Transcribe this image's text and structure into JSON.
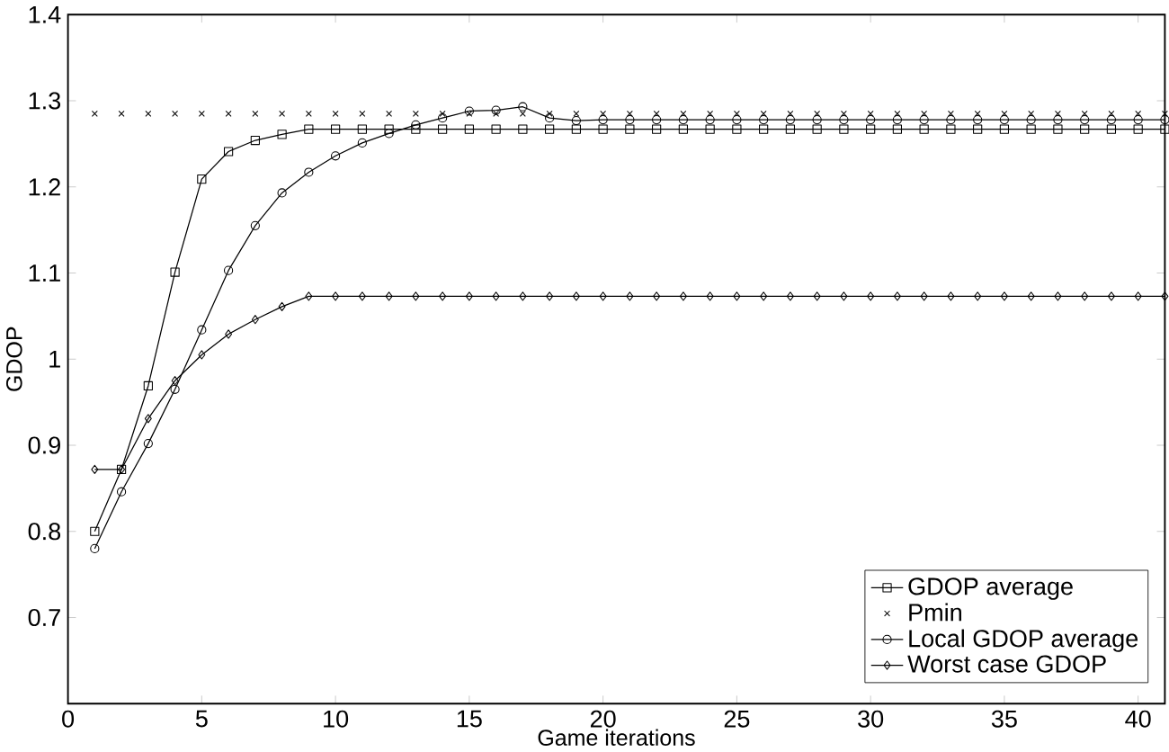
{
  "chart_data": {
    "type": "line",
    "xlabel": "Game iterations",
    "ylabel": "GDOP",
    "xlim": [
      0,
      41
    ],
    "xticks": [
      0,
      5,
      10,
      15,
      20,
      25,
      30,
      35,
      40
    ],
    "ylim": [
      0.6,
      1.4
    ],
    "yticks": [
      0.7,
      0.8,
      0.9,
      1,
      1.1,
      1.2,
      1.3,
      1.4
    ],
    "grid": false,
    "legend": "bottom right",
    "line_style": "solid",
    "x": [
      1,
      2,
      3,
      4,
      5,
      6,
      7,
      8,
      9,
      10,
      11,
      12,
      13,
      14,
      15,
      16,
      17,
      18,
      19,
      20,
      21,
      22,
      23,
      24,
      25,
      26,
      27,
      28,
      29,
      30,
      31,
      32,
      33,
      34,
      35,
      36,
      37,
      38,
      39,
      40,
      41
    ],
    "series": [
      {
        "name": "GDOP average",
        "color": "#000000",
        "marker": "square",
        "values": [
          0.8,
          0.872,
          0.969,
          1.101,
          1.209,
          1.241,
          1.254,
          1.261,
          1.267,
          1.267,
          1.267,
          1.267,
          1.267,
          1.267,
          1.267,
          1.267,
          1.267,
          1.267,
          1.267,
          1.267,
          1.267,
          1.267,
          1.267,
          1.267,
          1.267,
          1.267,
          1.267,
          1.267,
          1.267,
          1.267,
          1.267,
          1.267,
          1.267,
          1.267,
          1.267,
          1.267,
          1.267,
          1.267,
          1.267,
          1.267,
          1.267
        ]
      },
      {
        "name": "Pmin",
        "type": "scatter",
        "color": "#000000",
        "marker": "cross",
        "values": [
          1.285,
          1.285,
          1.285,
          1.285,
          1.285,
          1.285,
          1.285,
          1.285,
          1.285,
          1.285,
          1.285,
          1.285,
          1.285,
          1.285,
          1.285,
          1.285,
          1.285,
          1.285,
          1.285,
          1.285,
          1.285,
          1.285,
          1.285,
          1.285,
          1.285,
          1.285,
          1.285,
          1.285,
          1.285,
          1.285,
          1.285,
          1.285,
          1.285,
          1.285,
          1.285,
          1.285,
          1.285,
          1.285,
          1.285,
          1.285,
          1.285
        ]
      },
      {
        "name": "Local GDOP average",
        "color": "#000000",
        "marker": "circle",
        "values": [
          0.78,
          0.846,
          0.902,
          0.965,
          1.034,
          1.103,
          1.155,
          1.193,
          1.217,
          1.236,
          1.251,
          1.262,
          1.272,
          1.28,
          1.288,
          1.289,
          1.293,
          1.28,
          1.277,
          1.278,
          1.278,
          1.278,
          1.278,
          1.278,
          1.278,
          1.278,
          1.278,
          1.278,
          1.278,
          1.278,
          1.278,
          1.278,
          1.278,
          1.278,
          1.278,
          1.278,
          1.278,
          1.278,
          1.278,
          1.278,
          1.278
        ]
      },
      {
        "name": "Worst case GDOP",
        "color": "#000000",
        "marker": "diamond",
        "values": [
          0.872,
          0.872,
          0.931,
          0.975,
          1.005,
          1.029,
          1.046,
          1.061,
          1.073,
          1.073,
          1.073,
          1.073,
          1.073,
          1.073,
          1.073,
          1.073,
          1.073,
          1.073,
          1.073,
          1.073,
          1.073,
          1.073,
          1.073,
          1.073,
          1.073,
          1.073,
          1.073,
          1.073,
          1.073,
          1.073,
          1.073,
          1.073,
          1.073,
          1.073,
          1.073,
          1.073,
          1.073,
          1.073,
          1.073,
          1.073,
          1.073
        ]
      }
    ]
  }
}
